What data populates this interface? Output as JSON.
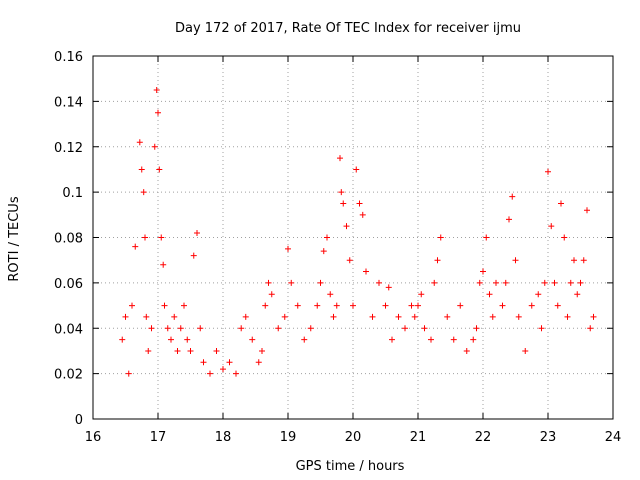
{
  "chart_data": {
    "type": "scatter",
    "title": "Day 172 of 2017, Rate Of TEC Index for receiver ijmu",
    "xlabel": "GPS time / hours",
    "ylabel": "ROTI / TECUs",
    "xlim": [
      16,
      24
    ],
    "ylim": [
      0,
      0.16
    ],
    "xticks": [
      "16",
      "17",
      "18",
      "19",
      "20",
      "21",
      "22",
      "23",
      "24"
    ],
    "yticks": [
      "0",
      "0.02",
      "0.04",
      "0.06",
      "0.08",
      "0.1",
      "0.12",
      "0.14",
      "0.16"
    ],
    "grid": true,
    "marker": "plus",
    "color": "#ff0000",
    "series": [
      {
        "name": "ROTI",
        "x": [
          16.45,
          16.5,
          16.55,
          16.6,
          16.65,
          16.72,
          16.75,
          16.78,
          16.8,
          16.82,
          16.85,
          16.9,
          16.95,
          16.98,
          17.0,
          17.02,
          17.05,
          17.08,
          17.1,
          17.15,
          17.2,
          17.25,
          17.3,
          17.35,
          17.4,
          17.45,
          17.5,
          17.55,
          17.6,
          17.65,
          17.7,
          17.8,
          17.9,
          18.0,
          18.1,
          18.2,
          18.28,
          18.35,
          18.45,
          18.55,
          18.6,
          18.65,
          18.7,
          18.75,
          18.85,
          18.95,
          19.0,
          19.05,
          19.15,
          19.25,
          19.35,
          19.45,
          19.5,
          19.55,
          19.6,
          19.65,
          19.7,
          19.75,
          19.8,
          19.82,
          19.85,
          19.9,
          19.95,
          20.0,
          20.05,
          20.1,
          20.15,
          20.2,
          20.3,
          20.4,
          20.5,
          20.55,
          20.6,
          20.7,
          20.8,
          20.9,
          20.95,
          21.0,
          21.05,
          21.1,
          21.2,
          21.25,
          21.3,
          21.35,
          21.45,
          21.55,
          21.65,
          21.75,
          21.85,
          21.9,
          21.95,
          22.0,
          22.05,
          22.1,
          22.15,
          22.2,
          22.3,
          22.35,
          22.4,
          22.45,
          22.5,
          22.55,
          22.65,
          22.75,
          22.85,
          22.9,
          22.95,
          23.0,
          23.05,
          23.1,
          23.15,
          23.2,
          23.25,
          23.3,
          23.35,
          23.4,
          23.45,
          23.5,
          23.55,
          23.6,
          23.65,
          23.7
        ],
        "y": [
          0.035,
          0.045,
          0.02,
          0.05,
          0.076,
          0.122,
          0.11,
          0.1,
          0.08,
          0.045,
          0.03,
          0.04,
          0.12,
          0.145,
          0.135,
          0.11,
          0.08,
          0.068,
          0.05,
          0.04,
          0.035,
          0.045,
          0.03,
          0.04,
          0.05,
          0.035,
          0.03,
          0.072,
          0.082,
          0.04,
          0.025,
          0.02,
          0.03,
          0.022,
          0.025,
          0.02,
          0.04,
          0.045,
          0.035,
          0.025,
          0.03,
          0.05,
          0.06,
          0.055,
          0.04,
          0.045,
          0.075,
          0.06,
          0.05,
          0.035,
          0.04,
          0.05,
          0.06,
          0.074,
          0.08,
          0.055,
          0.045,
          0.05,
          0.115,
          0.1,
          0.095,
          0.085,
          0.07,
          0.05,
          0.11,
          0.095,
          0.09,
          0.065,
          0.045,
          0.06,
          0.05,
          0.058,
          0.035,
          0.045,
          0.04,
          0.05,
          0.045,
          0.05,
          0.055,
          0.04,
          0.035,
          0.06,
          0.07,
          0.08,
          0.045,
          0.035,
          0.05,
          0.03,
          0.035,
          0.04,
          0.06,
          0.065,
          0.08,
          0.055,
          0.045,
          0.06,
          0.05,
          0.06,
          0.088,
          0.098,
          0.07,
          0.045,
          0.03,
          0.05,
          0.055,
          0.04,
          0.06,
          0.109,
          0.085,
          0.06,
          0.05,
          0.095,
          0.08,
          0.045,
          0.06,
          0.07,
          0.055,
          0.06,
          0.07,
          0.092,
          0.04,
          0.045
        ]
      }
    ]
  }
}
